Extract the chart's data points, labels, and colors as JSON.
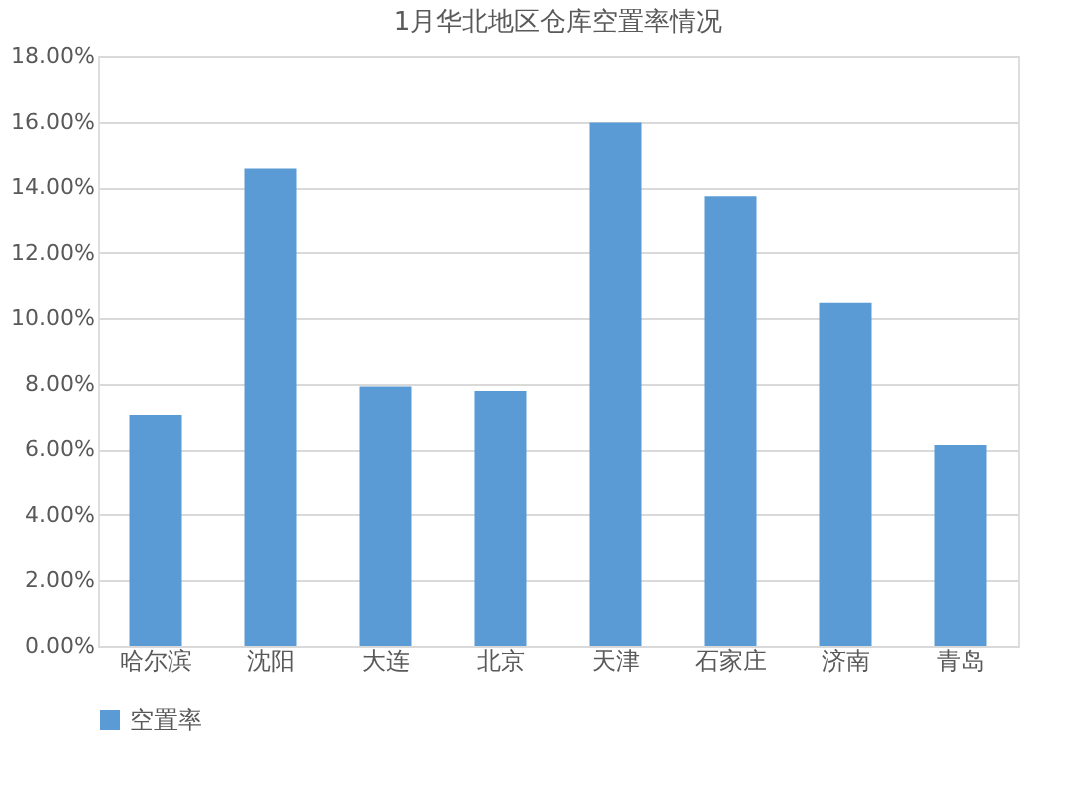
{
  "chart_data": {
    "type": "bar",
    "title": "1月华北地区仓库空置率情况",
    "categories": [
      "哈尔滨",
      "沈阳",
      "大连",
      "北京",
      "天津",
      "石家庄",
      "济南",
      "青岛"
    ],
    "series": [
      {
        "name": "空置率",
        "color": "#5b9bd5",
        "values": [
          7.05,
          14.57,
          7.92,
          7.78,
          15.97,
          13.72,
          10.47,
          6.13
        ]
      }
    ],
    "ylim": [
      0,
      18
    ],
    "yticks": [
      {
        "value": 0,
        "label": "0.00%"
      },
      {
        "value": 2,
        "label": "2.00%"
      },
      {
        "value": 4,
        "label": "4.00%"
      },
      {
        "value": 6,
        "label": "6.00%"
      },
      {
        "value": 8,
        "label": "8.00%"
      },
      {
        "value": 10,
        "label": "10.00%"
      },
      {
        "value": 12,
        "label": "12.00%"
      },
      {
        "value": 14,
        "label": "14.00%"
      },
      {
        "value": 16,
        "label": "16.00%"
      },
      {
        "value": 18,
        "label": "18.00%"
      }
    ],
    "grid": "y",
    "legend": "bottom"
  }
}
